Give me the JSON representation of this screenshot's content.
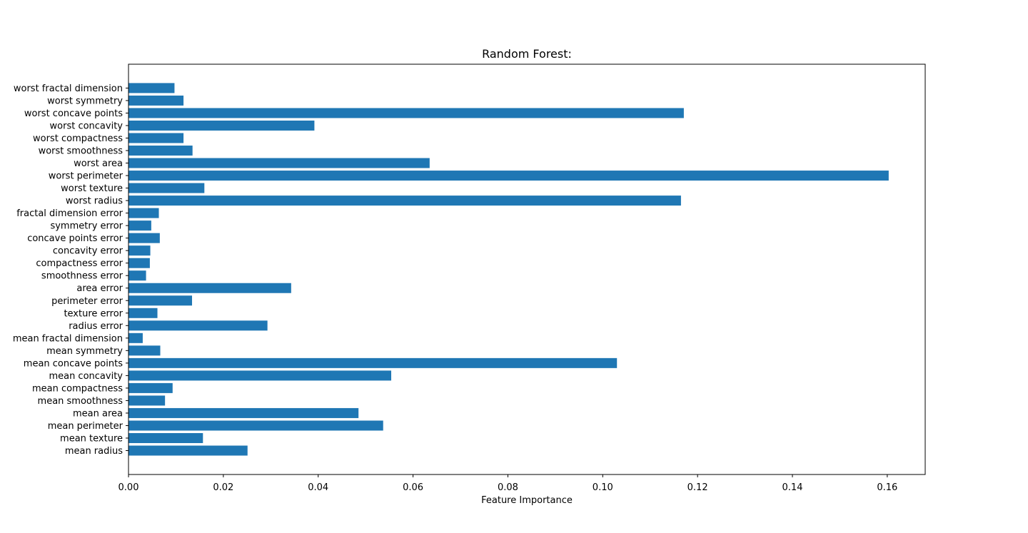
{
  "chart_data": {
    "type": "bar",
    "orientation": "horizontal",
    "title": "Random Forest:",
    "xlabel": "Feature Importance",
    "ylabel": "",
    "xlim": [
      0,
      0.168
    ],
    "x_ticks": [
      0.0,
      0.02,
      0.04,
      0.06,
      0.08,
      0.1,
      0.12,
      0.14,
      0.16
    ],
    "x_tick_labels": [
      "0.00",
      "0.02",
      "0.04",
      "0.06",
      "0.08",
      "0.10",
      "0.12",
      "0.14",
      "0.16"
    ],
    "grid": false,
    "bar_color": "#1f77b4",
    "categories": [
      "mean radius",
      "mean texture",
      "mean perimeter",
      "mean area",
      "mean smoothness",
      "mean compactness",
      "mean concavity",
      "mean concave points",
      "mean symmetry",
      "mean fractal dimension",
      "radius error",
      "texture error",
      "perimeter error",
      "area error",
      "smoothness error",
      "compactness error",
      "concavity error",
      "concave points error",
      "symmetry error",
      "fractal dimension error",
      "worst radius",
      "worst texture",
      "worst perimeter",
      "worst area",
      "worst smoothness",
      "worst compactness",
      "worst concavity",
      "worst concave points",
      "worst symmetry",
      "worst fractal dimension"
    ],
    "values": [
      0.0251,
      0.0157,
      0.0537,
      0.0485,
      0.0077,
      0.0093,
      0.0554,
      0.103,
      0.0067,
      0.003,
      0.0293,
      0.0061,
      0.0134,
      0.0343,
      0.0037,
      0.0045,
      0.0046,
      0.0066,
      0.0048,
      0.0064,
      0.1165,
      0.016,
      0.1603,
      0.0635,
      0.0135,
      0.0116,
      0.0392,
      0.1171,
      0.0116,
      0.0097
    ]
  }
}
